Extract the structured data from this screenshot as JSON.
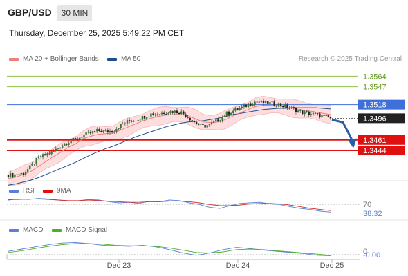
{
  "header": {
    "symbol": "GBP/USD",
    "timeframe": "30 MIN",
    "datetime": "Thursday, December 25, 2025 5:49:22 PM CET"
  },
  "legend": {
    "ma20_label": "MA 20 + Bollinger Bands",
    "ma50_label": "MA 50",
    "credit": "Research © 2025 Trading Central",
    "rsi_label": "RSI",
    "rsi_ma_label": "9MA",
    "macd_label": "MACD",
    "macd_signal_label": "MACD Signal"
  },
  "colors": {
    "ma20": "#f07c7c",
    "ma50": "#1f4e8c",
    "bollinger_fill": "#fcdada",
    "candle": "#2e7d32",
    "resistance": "#8bc34a",
    "pivot": "#3f6fd8",
    "support": "#e01010",
    "rsi": "#5b7fd6",
    "rsi_ma": "#d03030",
    "macd": "#5b7fd6",
    "macd_signal": "#4caf2a",
    "arrow": "#2a5ca8"
  },
  "chart_data": [
    {
      "type": "candlestick",
      "title": "GBP/USD 30 MIN",
      "ylim": [
        1.3395,
        1.358
      ],
      "x_ticks": [
        "Dec 23",
        "Dec 24",
        "Dec 25"
      ],
      "levels": [
        {
          "value": 1.3564,
          "label": "1.3564",
          "kind": "resistance"
        },
        {
          "value": 1.3547,
          "label": "1.3547",
          "kind": "resistance"
        },
        {
          "value": 1.3518,
          "label": "1.3518",
          "kind": "pivot"
        },
        {
          "value": 1.3461,
          "label": "1.3461",
          "kind": "support"
        },
        {
          "value": 1.3444,
          "label": "1.3444",
          "kind": "support"
        }
      ],
      "last_price": 1.3496,
      "last_price_label": "1.3496",
      "close_path": [
        1.3404,
        1.3405,
        1.3407,
        1.3418,
        1.3432,
        1.3437,
        1.3442,
        1.3452,
        1.3458,
        1.3462,
        1.3468,
        1.3472,
        1.3476,
        1.3474,
        1.3476,
        1.3485,
        1.3491,
        1.3494,
        1.3498,
        1.3503,
        1.3503,
        1.3506,
        1.3507,
        1.3506,
        1.3498,
        1.3488,
        1.3483,
        1.3486,
        1.3493,
        1.3503,
        1.3508,
        1.3512,
        1.3518,
        1.3523,
        1.3521,
        1.352,
        1.3518,
        1.3515,
        1.3511,
        1.3506,
        1.3504,
        1.3502,
        1.3499,
        1.3496
      ],
      "ma20": [
        1.3398,
        1.3401,
        1.3405,
        1.341,
        1.3418,
        1.3426,
        1.3434,
        1.3441,
        1.3449,
        1.3455,
        1.3463,
        1.3467,
        1.347,
        1.3471,
        1.3472,
        1.3477,
        1.3482,
        1.3487,
        1.3492,
        1.3496,
        1.3499,
        1.3501,
        1.3502,
        1.3502,
        1.35,
        1.3495,
        1.349,
        1.3489,
        1.349,
        1.3494,
        1.35,
        1.3505,
        1.351,
        1.3515,
        1.3517,
        1.3517,
        1.3516,
        1.3514,
        1.3512,
        1.351,
        1.3508,
        1.3506,
        1.3504,
        1.3502
      ],
      "ma50": [
        1.3388,
        1.339,
        1.3393,
        1.3396,
        1.34,
        1.3405,
        1.341,
        1.3415,
        1.342,
        1.3425,
        1.3431,
        1.3437,
        1.3442,
        1.3447,
        1.3451,
        1.3456,
        1.3461,
        1.3466,
        1.347,
        1.3474,
        1.3478,
        1.3482,
        1.3485,
        1.3488,
        1.349,
        1.3491,
        1.3492,
        1.3494,
        1.3496,
        1.3499,
        1.3502,
        1.3504,
        1.3506,
        1.3508,
        1.351,
        1.3511,
        1.3512,
        1.3512,
        1.3513,
        1.3513,
        1.3513,
        1.3513,
        1.3512,
        1.3511
      ]
    },
    {
      "type": "line",
      "title": "RSI",
      "ylim": [
        0,
        100
      ],
      "tick_labels": [
        "70"
      ],
      "last_value_label": "38.32",
      "series": [
        {
          "name": "RSI",
          "values": [
            60,
            62,
            61,
            63,
            62,
            60,
            58,
            59,
            61,
            60,
            57,
            55,
            56,
            54,
            58,
            57,
            60,
            59,
            55,
            52,
            47,
            45,
            50,
            54,
            55,
            56,
            53,
            52,
            48,
            45,
            43,
            40,
            38.32
          ]
        },
        {
          "name": "9MA",
          "values": [
            61,
            61,
            62,
            62,
            61,
            60,
            59,
            59,
            60,
            59,
            58,
            57,
            56,
            56,
            57,
            57,
            58,
            58,
            57,
            55,
            52,
            50,
            50,
            51,
            53,
            54,
            54,
            53,
            51,
            48,
            45,
            43,
            41
          ]
        }
      ]
    },
    {
      "type": "line",
      "title": "MACD",
      "tick_labels": [
        "0"
      ],
      "last_value_label": "-0.00",
      "series": [
        {
          "name": "MACD",
          "values": [
            0.0006,
            0.001,
            0.0014,
            0.0018,
            0.0021,
            0.0022,
            0.002,
            0.0017,
            0.0016,
            0.0015,
            0.0017,
            0.0014,
            0.0009,
            0.0003,
            -0.0001,
            0.0003,
            0.0009,
            0.0013,
            0.0011,
            0.0008,
            0.0006,
            0.0004,
            0.0002,
            -0.0001,
            -0.0002
          ]
        },
        {
          "name": "MACD Signal",
          "values": [
            0.0004,
            0.0007,
            0.0011,
            0.0015,
            0.0018,
            0.002,
            0.002,
            0.0019,
            0.0017,
            0.0016,
            0.0016,
            0.0015,
            0.0012,
            0.0008,
            0.0004,
            0.0003,
            0.0005,
            0.0009,
            0.001,
            0.0009,
            0.0007,
            0.0005,
            0.0003,
            0.0001,
            -0.0001
          ]
        }
      ]
    }
  ]
}
